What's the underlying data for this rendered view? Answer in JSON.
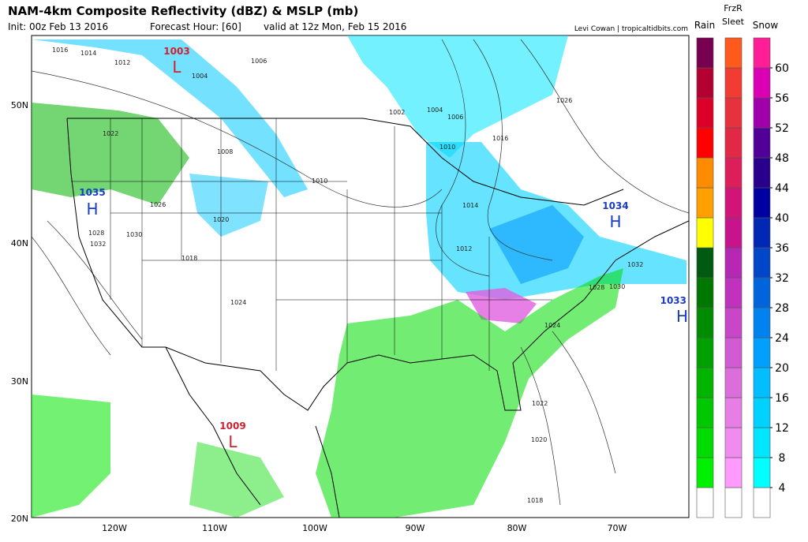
{
  "header": {
    "title": "NAM-4km Composite Reflectivity (dBZ) & MSLP (mb)",
    "init": "Init: 00z Feb 13 2016",
    "forecast_hour": "Forecast Hour: [60]",
    "valid": "valid at 12z Mon, Feb 15 2016",
    "credit": "Levi Cowan | tropicaltidbits.com"
  },
  "map": {
    "lat_labels": [
      "50N",
      "40N",
      "30N",
      "20N"
    ],
    "lon_labels": [
      "120W",
      "110W",
      "100W",
      "90W",
      "80W",
      "70W"
    ],
    "pressure_centers": [
      {
        "symbol": "L",
        "value": "1003"
      },
      {
        "symbol": "L",
        "value": "1009"
      },
      {
        "symbol": "H",
        "value": "1035"
      },
      {
        "symbol": "H",
        "value": "1034"
      },
      {
        "symbol": "H",
        "value": "1033"
      }
    ],
    "isobar_labels": [
      "1016",
      "1014",
      "1012",
      "1008",
      "1010",
      "1004",
      "1006",
      "1002",
      "1022",
      "1020",
      "1018",
      "1026",
      "1028",
      "1030",
      "1032",
      "1024",
      "1014",
      "1012",
      "1010",
      "1006",
      "1004",
      "1016",
      "1018",
      "1020",
      "1022",
      "1024",
      "1026",
      "1028",
      "1030",
      "1032"
    ]
  },
  "legend": {
    "columns": [
      {
        "label": "Rain",
        "colors": [
          "#ffffff",
          "#00f000",
          "#00dc00",
          "#00c800",
          "#00b400",
          "#00a000",
          "#008c00",
          "#007800",
          "#005a10",
          "#ffff00",
          "#ffa000",
          "#ff8c00",
          "#ff0000",
          "#dc0028",
          "#b40030",
          "#780050"
        ]
      },
      {
        "label": "FrzR Sleet",
        "colors": [
          "#ffffff",
          "#ff9aff",
          "#f08cf0",
          "#e67ee6",
          "#dc6edc",
          "#d25ad2",
          "#c846c8",
          "#be32be",
          "#b428b4",
          "#c8148c",
          "#d21478",
          "#dc1e5a",
          "#e12846",
          "#e6323c",
          "#f03c32",
          "#ff5a1e"
        ]
      },
      {
        "label": "Snow",
        "colors": [
          "#ffffff",
          "#00ffff",
          "#00e6ff",
          "#00d2ff",
          "#00beff",
          "#00a0ff",
          "#0082f0",
          "#0064dc",
          "#0046c8",
          "#0028b4",
          "#0000a0",
          "#28008c",
          "#500096",
          "#a000aa",
          "#dc00b4",
          "#ff1e96"
        ]
      }
    ],
    "ticks": [
      4,
      8,
      12,
      16,
      20,
      24,
      28,
      32,
      36,
      40,
      44,
      48,
      52,
      56,
      60
    ]
  }
}
